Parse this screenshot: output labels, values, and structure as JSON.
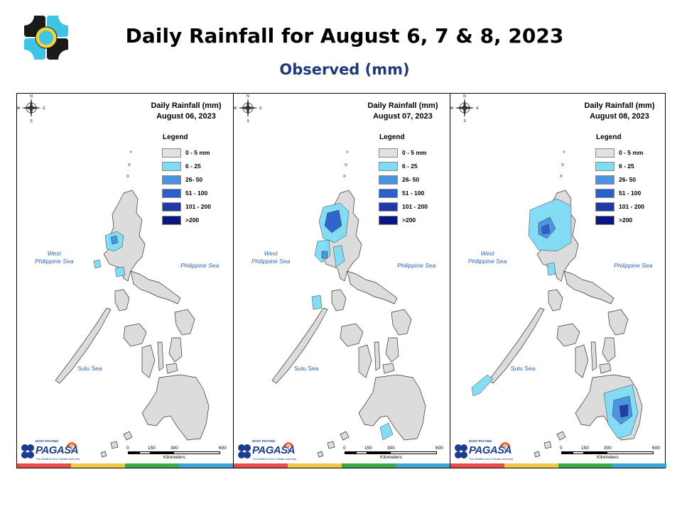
{
  "header": {
    "title": "Daily Rainfall for August 6, 7 & 8, 2023",
    "subtitle": "Observed (mm)"
  },
  "legend": {
    "heading": "Legend",
    "items": [
      {
        "label": "0 - 5 mm",
        "color": "#e1e1e1"
      },
      {
        "label": "6 - 25",
        "color": "#7fdcf5"
      },
      {
        "label": "26- 50",
        "color": "#4a92e2"
      },
      {
        "label": "51 - 100",
        "color": "#2b60cc"
      },
      {
        "label": "101 - 200",
        "color": "#1f3aa8"
      },
      {
        "label": ">200",
        "color": "#0b1780"
      }
    ]
  },
  "seas": {
    "west": "West\nPhilippine Sea",
    "east": "Philippine Sea",
    "sulu": "Sulu Sea"
  },
  "compass": {
    "n": "N",
    "s": "S",
    "e": "E",
    "w": "W"
  },
  "scale": {
    "ticks": [
      "0",
      "150",
      "300",
      "600"
    ],
    "unit": "Kilometers"
  },
  "branding": {
    "org": "PAGASA",
    "prefix": "DOST PAYONG",
    "slogan": "The Weather and Climate Authority"
  },
  "panels": [
    {
      "heading": "Daily Rainfall (mm)",
      "date": "August 06, 2023"
    },
    {
      "heading": "Daily Rainfall (mm)",
      "date": "August 07, 2023"
    },
    {
      "heading": "Daily Rainfall (mm)",
      "date": "August 08, 2023"
    }
  ]
}
